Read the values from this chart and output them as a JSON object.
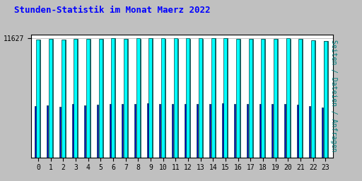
{
  "title": "Stunden-Statistik im Monat Maerz 2022",
  "title_color": "#0000ff",
  "ylabel_right": "Seiten / Dateien / Anfragen",
  "ylabel_right_color": "#008080",
  "background_outer": "#c0c0c0",
  "background_inner": "#ffffff",
  "bar_colors_cyan": "#00ffff",
  "bar_colors_teal": "#008080",
  "bar_colors_blue": "#0000cc",
  "bar_edgecolor": "#004040",
  "hours": [
    0,
    1,
    2,
    3,
    4,
    5,
    6,
    7,
    8,
    9,
    10,
    11,
    12,
    13,
    14,
    15,
    16,
    17,
    18,
    19,
    20,
    21,
    22,
    23
  ],
  "values_cyan": [
    11480,
    11550,
    11470,
    11580,
    11560,
    11570,
    11610,
    11590,
    11600,
    11627,
    11600,
    11605,
    11605,
    11605,
    11608,
    11627,
    11590,
    11590,
    11590,
    11590,
    11600,
    11570,
    11430,
    11350
  ],
  "values_teal": [
    11470,
    11540,
    11460,
    11570,
    11550,
    11560,
    11600,
    11580,
    11590,
    11620,
    11590,
    11595,
    11595,
    11595,
    11598,
    11620,
    11580,
    11580,
    11580,
    11580,
    11590,
    11560,
    11420,
    11340
  ],
  "values_blue": [
    5000,
    5100,
    4950,
    5200,
    5100,
    5150,
    5250,
    5200,
    5200,
    5280,
    5200,
    5220,
    5220,
    5220,
    5230,
    5270,
    5190,
    5190,
    5190,
    5190,
    5210,
    5170,
    4980,
    4850
  ],
  "ymin": 0,
  "ymax": 12000,
  "ytick_val": 11627,
  "ytick_pos": 11627,
  "grid_color": "#aaaaaa",
  "font_family": "monospace",
  "title_fontsize": 9,
  "tick_fontsize": 7
}
